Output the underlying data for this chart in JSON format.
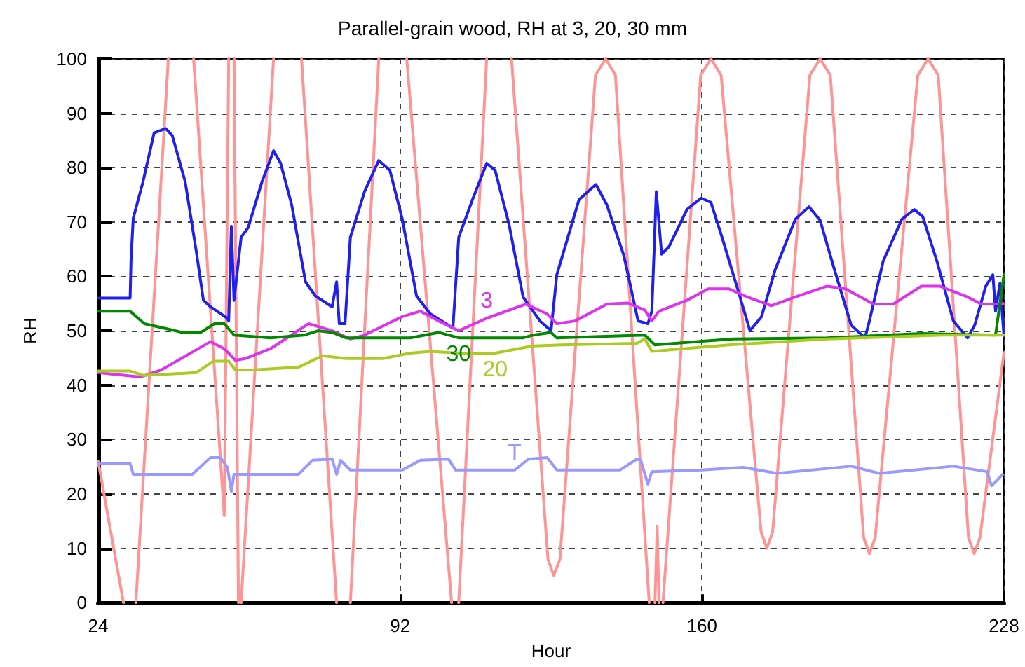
{
  "chart_data": {
    "type": "line",
    "title": "Parallel-grain wood, RH at 3, 20, 30 mm",
    "xlabel": "Hour",
    "ylabel": "RH",
    "xlim": [
      24,
      228
    ],
    "xticks": [
      24,
      92,
      160,
      228
    ],
    "ylim": [
      0,
      100
    ],
    "yticks": [
      0,
      10,
      20,
      30,
      40,
      50,
      60,
      70,
      80,
      90,
      100
    ],
    "grid": true,
    "legend": false,
    "marker": "none",
    "line_style": "solid",
    "series": [
      {
        "color": "#ff9494",
        "x": [
          24,
          29.7,
          31.1,
          32.5,
          39.8,
          42.6,
          45.5,
          52.4,
          53.4,
          54,
          54.6,
          55.6,
          55.9,
          56.2,
          63.5,
          66.6,
          69.8,
          77.7,
          79.2,
          80.8,
          87.2,
          90.3,
          93.5,
          103.6,
          104.4,
          105.2,
          111.5,
          114.3,
          117.1,
          125.3,
          126.6,
          128,
          136,
          138.3,
          140.5,
          148.1,
          148.8,
          149.4,
          149.9,
          150.3,
          150.8,
          151.2,
          159.7,
          162,
          164.3,
          173.3,
          174.6,
          175.9,
          184.3,
          186.6,
          188.9,
          196.4,
          197.7,
          199,
          208.6,
          210.9,
          213.2,
          220,
          221.3,
          222.6,
          228
        ],
        "values": [
          26,
          0,
          null,
          0,
          100,
          null,
          100,
          16,
          100,
          null,
          100,
          0,
          null,
          0,
          100,
          null,
          100,
          0,
          null,
          0,
          100,
          null,
          100,
          0,
          null,
          0,
          100,
          null,
          100,
          8,
          5,
          8,
          97,
          100,
          97,
          0,
          null,
          0,
          14,
          0,
          null,
          0,
          97,
          100,
          97,
          13,
          10,
          13,
          97,
          100,
          97,
          12,
          9,
          12,
          97,
          100,
          97,
          12,
          9,
          12,
          46
        ]
      },
      {
        "color": "#2020ee",
        "x": [
          24,
          31.2,
          31.4,
          31.9,
          34.1,
          36.6,
          39.2,
          40.7,
          43.6,
          46.1,
          47.7,
          49.3,
          53.1,
          53.4,
          54,
          54.6,
          56.2,
          57.8,
          60.9,
          63.5,
          65.1,
          67.6,
          70.7,
          72.9,
          76.7,
          77.7,
          78.3,
          79.6,
          80.8,
          84,
          87.2,
          89.7,
          92.5,
          95.7,
          98.8,
          103.9,
          105.2,
          108.3,
          111.5,
          113.4,
          116.5,
          119.7,
          123.5,
          126,
          127.3,
          129.8,
          132.3,
          136.1,
          138.6,
          142.4,
          145.6,
          147.8,
          148.7,
          149.7,
          150.9,
          152.5,
          156.6,
          159.8,
          162,
          164.5,
          168.3,
          170.8,
          173.4,
          176.5,
          181,
          184.1,
          186.6,
          189.8,
          193.6,
          196.7,
          197.7,
          200.8,
          205,
          207.8,
          209.7,
          212.9,
          216.6,
          219.8,
          221.4,
          223.9,
          225.5,
          226.1,
          227.1,
          228
        ],
        "values": [
          56,
          56,
          63,
          70.7,
          77.4,
          86.4,
          87.2,
          85.9,
          77.4,
          64.6,
          55.6,
          54.4,
          52.3,
          51.8,
          69.2,
          55.6,
          67.2,
          69,
          77.4,
          83.1,
          80.8,
          73.1,
          59,
          56.4,
          54.4,
          59,
          51.3,
          51.3,
          67.2,
          75.6,
          81.3,
          79.5,
          70.5,
          56.4,
          53.1,
          50.5,
          67.2,
          74.1,
          80.8,
          79.5,
          69.7,
          56.2,
          51.8,
          50,
          60.3,
          67.2,
          74.1,
          76.9,
          73.1,
          63.8,
          51.8,
          51.3,
          53.6,
          75.6,
          64.1,
          65.4,
          72.3,
          74.4,
          73.6,
          67.2,
          56.9,
          50,
          52.6,
          61.3,
          70.5,
          72.8,
          70.3,
          61.3,
          51,
          48.7,
          51.8,
          62.8,
          70.5,
          72.3,
          71,
          62.8,
          51.8,
          48.7,
          51,
          58.2,
          60.3,
          53.6,
          58.7,
          49
        ]
      },
      {
        "name": "3",
        "color": "#dd33ee",
        "x": [
          24,
          33.5,
          38.2,
          49.3,
          52.4,
          54.9,
          57.2,
          62.8,
          71.4,
          76.7,
          80.8,
          84,
          92.5,
          96.6,
          100.7,
          105.2,
          111.5,
          120.3,
          125.1,
          127.3,
          131.4,
          138.6,
          143.3,
          147.1,
          148.7,
          150.3,
          156.6,
          161.4,
          166.1,
          170.2,
          175.6,
          181,
          188.2,
          192.3,
          198.6,
          203,
          209.4,
          213.5,
          219.8,
          222.9,
          226.1,
          228
        ],
        "values": [
          42.3,
          41.5,
          42.8,
          48,
          46.7,
          44.6,
          44.9,
          46.7,
          51.3,
          50,
          48.5,
          49.2,
          52.6,
          53.6,
          51.8,
          50,
          52.3,
          54.9,
          53.1,
          51.3,
          51.8,
          54.9,
          55.1,
          53.8,
          51.8,
          53.6,
          55.6,
          57.7,
          57.7,
          56.2,
          54.6,
          56.2,
          58.2,
          57.7,
          54.9,
          54.9,
          58.2,
          58.2,
          56.2,
          54.9,
          54.9,
          55
        ]
      },
      {
        "name": "30",
        "color": "#008800",
        "x": [
          24,
          31.2,
          34.4,
          39.8,
          42.9,
          47.1,
          50.2,
          52.4,
          54.6,
          62.8,
          70.4,
          73.5,
          76.7,
          79.8,
          94.3,
          100.7,
          105.2,
          119.7,
          121.9,
          126,
          127.3,
          147.1,
          149.4,
          167,
          188.2,
          209.4,
          226.1,
          228
        ],
        "values": [
          53.6,
          53.6,
          51.3,
          50.3,
          49.7,
          49.7,
          51.3,
          51.3,
          49.2,
          48.7,
          49.2,
          50,
          49.7,
          48.7,
          48.7,
          49.7,
          48.7,
          48.7,
          49.2,
          49.7,
          48.7,
          49.2,
          47.4,
          48.5,
          48.7,
          49.5,
          49.2,
          60.3
        ]
      },
      {
        "name": "20",
        "color": "#aacc22",
        "x": [
          24,
          31.2,
          34.1,
          38.8,
          46.1,
          49.9,
          53.4,
          54.9,
          58.7,
          69.1,
          74.5,
          79.8,
          88.1,
          94.3,
          98.8,
          105.2,
          113.4,
          121.9,
          128.3,
          145.3,
          147.1,
          148.7,
          166,
          188.2,
          214.4,
          228
        ],
        "values": [
          42.6,
          42.6,
          41.8,
          42,
          42.3,
          44.4,
          44.4,
          42.8,
          42.8,
          43.3,
          45.4,
          44.9,
          44.9,
          45.9,
          46.2,
          45.9,
          45.9,
          47.2,
          47.4,
          47.7,
          48.5,
          46.2,
          47.4,
          48.5,
          49.2,
          49.2
        ]
      },
      {
        "name": "T",
        "color": "#9999ff",
        "x": [
          24,
          31.2,
          31.9,
          45.2,
          49.3,
          51.5,
          53.1,
          54,
          54.6,
          69.1,
          72.3,
          76.7,
          77.7,
          78.6,
          80.8,
          92.5,
          96.6,
          102.9,
          104.5,
          117.8,
          120.9,
          125.1,
          127.3,
          141.5,
          145.3,
          146.2,
          147.8,
          148.7,
          159.8,
          169.3,
          176.9,
          193.6,
          199.9,
          216.6,
          224.2,
          225.2,
          227.7
        ],
        "values": [
          25.6,
          25.6,
          23.6,
          23.6,
          26.7,
          26.7,
          24.9,
          20.5,
          23.6,
          23.6,
          26.2,
          26.4,
          23.6,
          26.2,
          24.4,
          24.4,
          26.2,
          26.4,
          24.4,
          24.4,
          26.4,
          26.7,
          24.4,
          24.4,
          26.4,
          26.2,
          21.8,
          24.1,
          24.4,
          24.9,
          23.8,
          25.1,
          23.8,
          25.1,
          24.1,
          21.5,
          23.6
        ]
      }
    ]
  }
}
